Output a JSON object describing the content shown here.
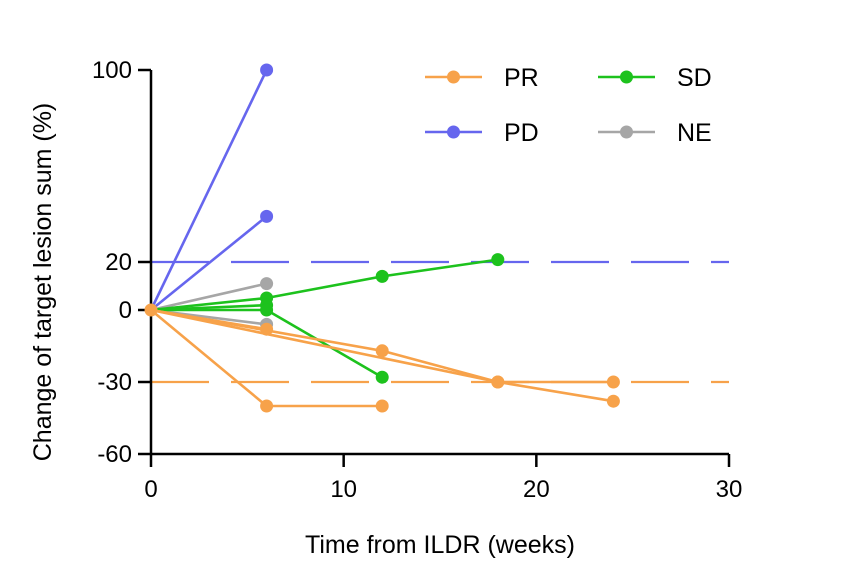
{
  "chart_data": {
    "type": "line",
    "title": "",
    "xlabel": "Time from ILDR (weeks)",
    "ylabel": "Change of target lesion sum (%)",
    "xlim": [
      0,
      30
    ],
    "ylim": [
      -60,
      100
    ],
    "x_ticks": [
      0,
      10,
      20,
      30
    ],
    "x_tick_labels": [
      "0",
      "10",
      "20",
      "30"
    ],
    "y_ticks": [
      -60,
      -30,
      0,
      20,
      100
    ],
    "y_tick_labels": [
      "-60",
      "-30",
      "0",
      "20",
      "100"
    ],
    "reference_lines": [
      {
        "y": 20,
        "group": "PD",
        "style": "dashed"
      },
      {
        "y": -30,
        "group": "PR",
        "style": "dashed"
      }
    ],
    "groups": [
      {
        "name": "PR",
        "color": "#F7A24A"
      },
      {
        "name": "SD",
        "color": "#1DC21D"
      },
      {
        "name": "PD",
        "color": "#6666EE"
      },
      {
        "name": "NE",
        "color": "#A6A6A6"
      }
    ],
    "legend_position": "top-right",
    "series": [
      {
        "group": "PR",
        "x": [
          0,
          6
        ],
        "y": [
          0,
          -8
        ]
      },
      {
        "group": "PR",
        "x": [
          0,
          6,
          12
        ],
        "y": [
          0,
          -40,
          -40
        ]
      },
      {
        "group": "PR",
        "x": [
          0,
          12,
          18,
          24
        ],
        "y": [
          0,
          -17,
          -30,
          -38
        ]
      },
      {
        "group": "PR",
        "x": [
          0,
          18,
          24
        ],
        "y": [
          0,
          -30,
          -30
        ]
      },
      {
        "group": "SD",
        "x": [
          0,
          6,
          12,
          18
        ],
        "y": [
          0,
          5,
          14,
          21
        ]
      },
      {
        "group": "SD",
        "x": [
          0,
          6
        ],
        "y": [
          0,
          2
        ]
      },
      {
        "group": "SD",
        "x": [
          0,
          6,
          12
        ],
        "y": [
          0,
          0,
          -28
        ]
      },
      {
        "group": "PD",
        "x": [
          0,
          6
        ],
        "y": [
          0,
          100
        ]
      },
      {
        "group": "PD",
        "x": [
          0,
          6
        ],
        "y": [
          0,
          39
        ]
      },
      {
        "group": "NE",
        "x": [
          0,
          6
        ],
        "y": [
          0,
          11
        ]
      },
      {
        "group": "NE",
        "x": [
          0,
          6
        ],
        "y": [
          0,
          -6
        ]
      }
    ]
  }
}
